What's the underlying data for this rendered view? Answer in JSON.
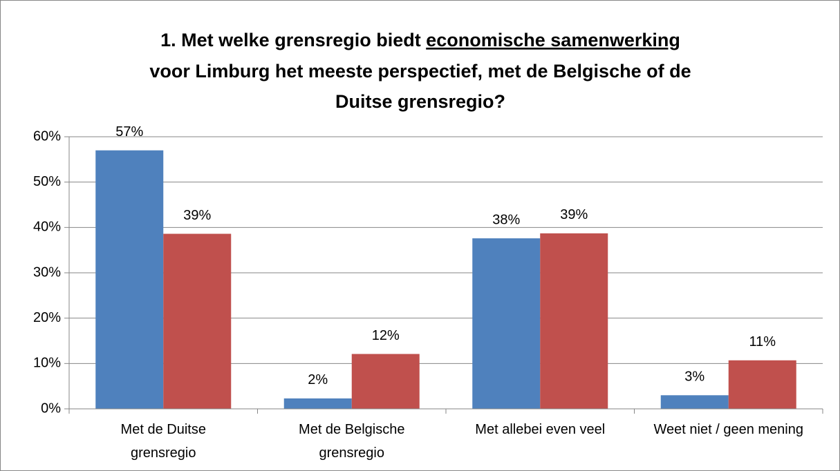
{
  "chart_data": {
    "type": "bar",
    "title": [
      "1. Met welke grensregio biedt ",
      "economische samenwerking",
      "voor Limburg het meeste perspectief, met de Belgische of de",
      "Duitse grensregio?"
    ],
    "categories": [
      [
        "Met de Duitse",
        "grensregio"
      ],
      [
        "Met de Belgische",
        "grensregio"
      ],
      [
        "Met allebei even veel"
      ],
      [
        "Weet niet / geen mening"
      ]
    ],
    "series": [
      {
        "color": "#4f81bd",
        "values": [
          57,
          2.3,
          37.6,
          3.0
        ],
        "value_labels": [
          "57%",
          "2%",
          "38%",
          "3%"
        ]
      },
      {
        "color": "#c0504d",
        "values": [
          38.6,
          12.1,
          38.7,
          10.7
        ],
        "value_labels": [
          "39%",
          "12%",
          "39%",
          "11%"
        ]
      }
    ],
    "ylim": [
      0,
      60
    ],
    "yticks": [
      {
        "value": 0,
        "label": "0%"
      },
      {
        "value": 10,
        "label": "10%"
      },
      {
        "value": 20,
        "label": "20%"
      },
      {
        "value": 30,
        "label": "30%"
      },
      {
        "value": 40,
        "label": "40%"
      },
      {
        "value": 50,
        "label": "50%"
      },
      {
        "value": 60,
        "label": "60%"
      }
    ],
    "grid": true
  }
}
